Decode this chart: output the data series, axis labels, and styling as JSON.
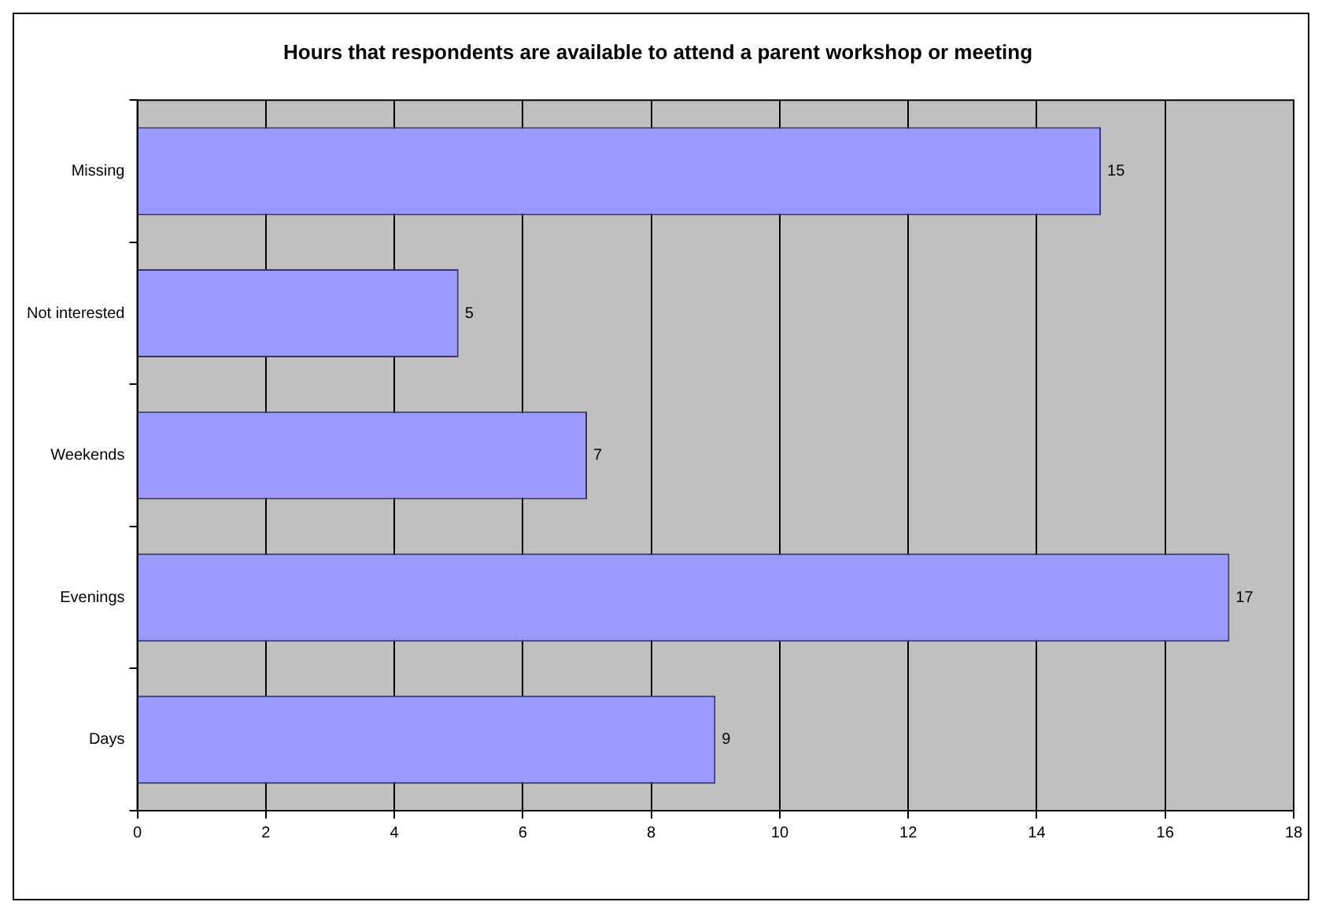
{
  "chart_data": {
    "type": "bar",
    "orientation": "horizontal",
    "title": "Hours that respondents are available to attend a parent workshop or meeting",
    "categories": [
      "Missing",
      "Not interested",
      "Weekends",
      "Evenings",
      "Days"
    ],
    "values": [
      15,
      5,
      7,
      17,
      9
    ],
    "color": "#9999ff",
    "xlim": [
      0,
      18
    ],
    "xticks": [
      0,
      2,
      4,
      6,
      8,
      10,
      12,
      14,
      16,
      18
    ],
    "grid": "x",
    "legend": false,
    "data_labels": true
  }
}
